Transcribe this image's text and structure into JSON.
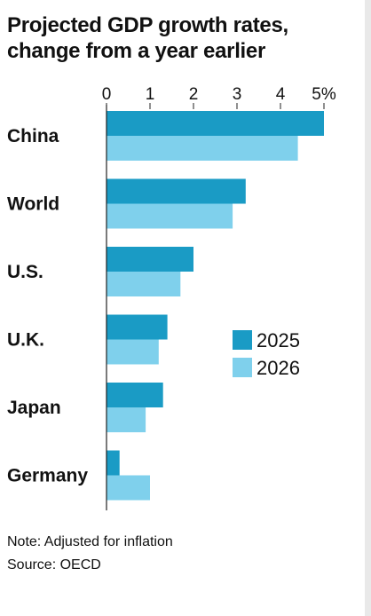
{
  "title_line1": "Projected GDP growth rates,",
  "title_line2": "change from a year earlier",
  "note": "Note: Adjusted for inflation",
  "source": "Source: OECD",
  "colors": {
    "series_2025": "#1a9bc5",
    "series_2026": "#7fd0ec",
    "axis": "#222222"
  },
  "chart_data": {
    "type": "bar",
    "orientation": "horizontal",
    "categories": [
      "China",
      "World",
      "U.S.",
      "U.K.",
      "Japan",
      "Germany"
    ],
    "series": [
      {
        "name": "2025",
        "values": [
          5.0,
          3.2,
          2.0,
          1.4,
          1.3,
          0.3
        ]
      },
      {
        "name": "2026",
        "values": [
          4.4,
          2.9,
          1.7,
          1.2,
          0.9,
          1.0
        ]
      }
    ],
    "x_ticks": [
      "0",
      "1",
      "2",
      "3",
      "4",
      "5%"
    ],
    "xlim": [
      0,
      5
    ],
    "legend": {
      "placement": "right-middle"
    },
    "grid": false
  }
}
